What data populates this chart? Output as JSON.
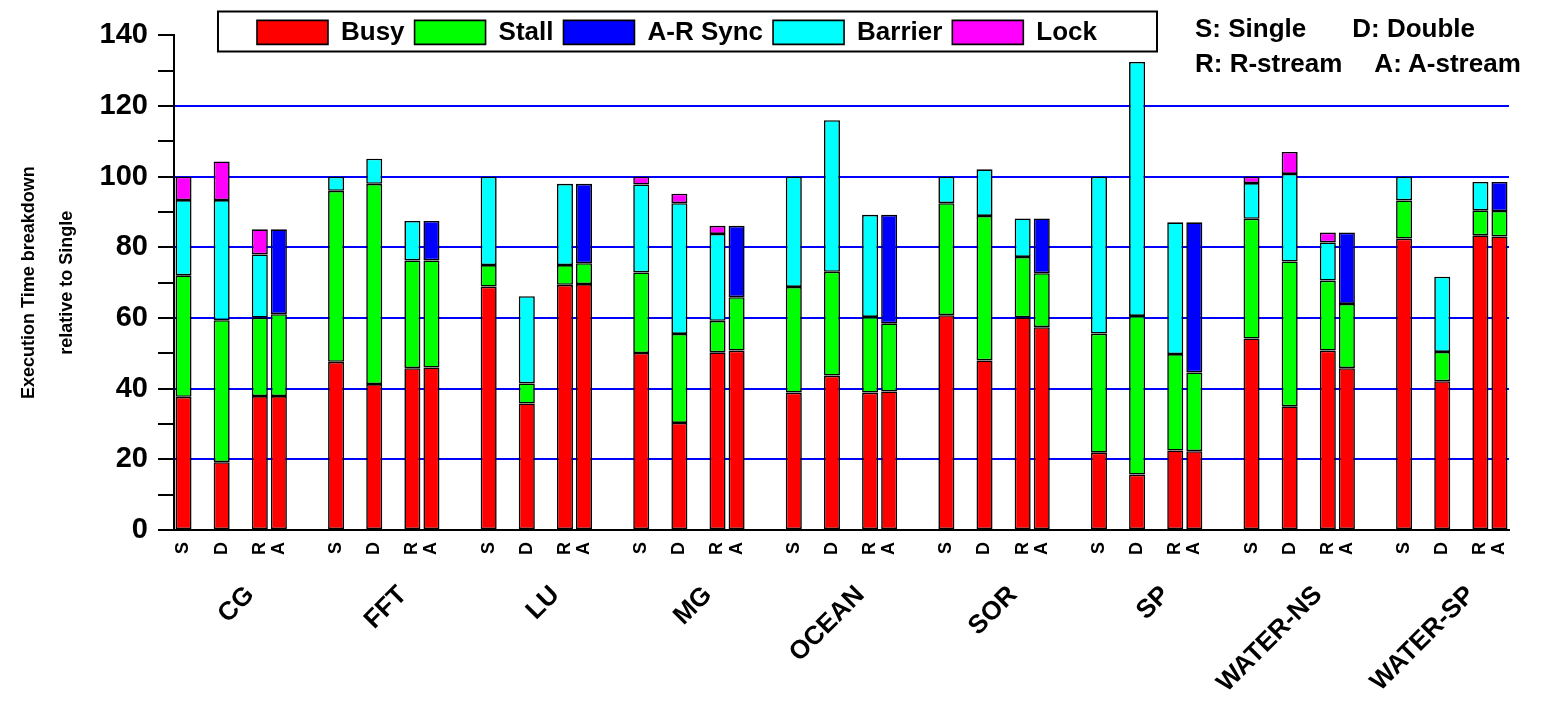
{
  "chart_data": {
    "type": "bar",
    "stacked": true,
    "ylabel": "Execution Time breakdown\nrelative to Single",
    "categories": [
      "S",
      null,
      "D",
      null,
      "R",
      "A",
      null,
      null,
      "S",
      null,
      "D",
      null,
      "R",
      "A",
      null,
      null,
      "S",
      null,
      "D",
      null,
      "R",
      "A",
      null,
      null,
      "S",
      null,
      "D",
      null,
      "R",
      "A",
      null,
      null,
      "S",
      null,
      "D",
      null,
      "R",
      "A",
      null,
      null,
      "S",
      null,
      "D",
      null,
      "R",
      "A",
      null,
      null,
      "S",
      null,
      "D",
      null,
      "R",
      "A",
      null,
      null,
      "S",
      null,
      "D",
      null,
      "R",
      "A",
      null,
      null,
      "S",
      null,
      "D",
      null,
      "R",
      "A"
    ],
    "series": [
      {
        "name": "Busy",
        "color": "#ff0000",
        "values": [
          37.7,
          null,
          19.2,
          null,
          37.9,
          37.9,
          null,
          null,
          47.6,
          null,
          41.3,
          null,
          45.8,
          46.0,
          null,
          null,
          68.9,
          null,
          35.8,
          null,
          69.4,
          69.6,
          null,
          null,
          50.1,
          null,
          30.3,
          null,
          50.3,
          50.8,
          null,
          null,
          38.9,
          null,
          43.7,
          null,
          38.9,
          39.2,
          null,
          null,
          60.8,
          null,
          48.0,
          null,
          60.2,
          57.4,
          null,
          null,
          21.9,
          null,
          15.7,
          null,
          22.5,
          22.3,
          null,
          null,
          54.2,
          null,
          35.0,
          null,
          50.8,
          45.8,
          null,
          null,
          82.5,
          null,
          42.1,
          null,
          83.4,
          83.1
        ]
      },
      {
        "name": "Stall",
        "color": "#00ff00",
        "values": [
          34.4,
          null,
          40.2,
          null,
          22.2,
          23.2,
          null,
          null,
          48.4,
          null,
          56.7,
          null,
          30.5,
          30.3,
          null,
          null,
          6.1,
          null,
          5.7,
          null,
          5.6,
          5.9,
          null,
          null,
          22.8,
          null,
          25.2,
          null,
          8.9,
          15.1,
          null,
          null,
          29.9,
          null,
          29.4,
          null,
          21.4,
          19.3,
          null,
          null,
          31.7,
          null,
          40.9,
          null,
          17.1,
          15.3,
          null,
          null,
          33.7,
          null,
          44.9,
          null,
          27.3,
          22.3,
          null,
          null,
          33.9,
          null,
          41.0,
          null,
          19.8,
          18.2,
          null,
          null,
          10.8,
          null,
          8.3,
          null,
          7.1,
          7.2
        ]
      },
      {
        "name": "A-R Sync",
        "color": "#0000ff",
        "values": [
          null,
          null,
          null,
          null,
          null,
          24.0,
          null,
          null,
          null,
          null,
          null,
          null,
          null,
          11.2,
          null,
          null,
          null,
          null,
          null,
          null,
          null,
          22.5,
          null,
          null,
          null,
          null,
          null,
          null,
          null,
          20.2,
          null,
          null,
          null,
          null,
          null,
          null,
          null,
          30.7,
          null,
          null,
          null,
          null,
          null,
          null,
          null,
          15.5,
          null,
          null,
          null,
          null,
          null,
          null,
          null,
          42.5,
          null,
          null,
          null,
          null,
          null,
          null,
          null,
          20.2,
          null,
          null,
          null,
          null,
          null,
          null,
          null,
          8.2
        ]
      },
      {
        "name": "Barrier",
        "color": "#00ffff",
        "values": [
          21.3,
          null,
          34.0,
          null,
          17.9,
          null,
          null,
          null,
          4.0,
          null,
          7.1,
          null,
          11.2,
          null,
          null,
          null,
          25.0,
          null,
          24.7,
          null,
          23.0,
          null,
          null,
          null,
          24.9,
          null,
          37.0,
          null,
          24.6,
          null,
          null,
          null,
          31.2,
          null,
          42.9,
          null,
          28.9,
          null,
          null,
          null,
          7.5,
          null,
          13.2,
          null,
          10.9,
          null,
          null,
          null,
          44.4,
          null,
          71.9,
          null,
          37.3,
          null,
          null,
          null,
          10.1,
          null,
          24.8,
          null,
          10.8,
          null,
          null,
          null,
          6.7,
          null,
          21.3,
          null,
          8.0,
          null
        ]
      },
      {
        "name": "Lock",
        "color": "#ff00ff",
        "values": [
          6.6,
          null,
          10.9,
          null,
          7.1,
          null,
          null,
          null,
          null,
          null,
          null,
          null,
          null,
          null,
          null,
          null,
          null,
          null,
          null,
          null,
          null,
          null,
          null,
          null,
          2.2,
          null,
          2.7,
          null,
          2.3,
          null,
          null,
          null,
          null,
          null,
          null,
          null,
          null,
          null,
          null,
          null,
          null,
          null,
          null,
          null,
          null,
          null,
          null,
          null,
          null,
          null,
          null,
          null,
          null,
          null,
          null,
          null,
          1.8,
          null,
          6.2,
          null,
          2.8,
          null,
          null,
          null,
          null,
          null,
          null,
          null,
          null,
          null
        ]
      }
    ],
    "ylim": [
      0,
      140
    ],
    "yticks": [
      0,
      {
        "value": 10,
        "label": null
      },
      20,
      {
        "value": 30,
        "label": null
      },
      40,
      {
        "value": 50,
        "label": null
      },
      60,
      {
        "value": 70,
        "label": null
      },
      80,
      {
        "value": 90,
        "label": null
      },
      100,
      {
        "value": 110,
        "label": null
      },
      120,
      {
        "value": 130,
        "label": null
      },
      140
    ],
    "grid": "y",
    "legend": "top",
    "annotations": [
      "CG",
      "FFT",
      "LU",
      "MG",
      "OCEAN",
      "SOR",
      "SP",
      "WATER-NS",
      "WATER-SP",
      "S: Single",
      "D: Double",
      "R: R-stream",
      "A: A-stream"
    ]
  }
}
